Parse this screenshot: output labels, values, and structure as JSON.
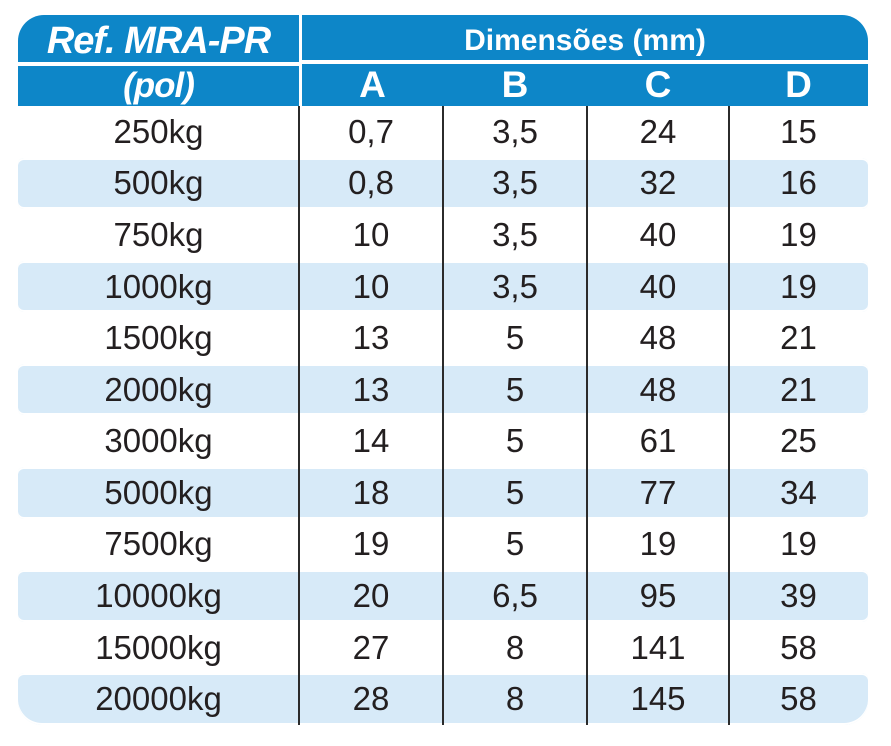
{
  "chart_data": {
    "type": "table",
    "title": "Dimensões (mm)",
    "ref_column_header": "Ref. MRA-PR",
    "ref_column_subheader": "(pol)",
    "columns": [
      "A",
      "B",
      "C",
      "D"
    ],
    "rows": [
      {
        "ref": "250kg",
        "a": "0,7",
        "b": "3,5",
        "c": "24",
        "d": "15"
      },
      {
        "ref": "500kg",
        "a": "0,8",
        "b": "3,5",
        "c": "32",
        "d": "16"
      },
      {
        "ref": "750kg",
        "a": "10",
        "b": "3,5",
        "c": "40",
        "d": "19"
      },
      {
        "ref": "1000kg",
        "a": "10",
        "b": "3,5",
        "c": "40",
        "d": "19"
      },
      {
        "ref": "1500kg",
        "a": "13",
        "b": "5",
        "c": "48",
        "d": "21"
      },
      {
        "ref": "2000kg",
        "a": "13",
        "b": "5",
        "c": "48",
        "d": "21"
      },
      {
        "ref": "3000kg",
        "a": "14",
        "b": "5",
        "c": "61",
        "d": "25"
      },
      {
        "ref": "5000kg",
        "a": "18",
        "b": "5",
        "c": "77",
        "d": "34"
      },
      {
        "ref": "7500kg",
        "a": "19",
        "b": "5",
        "c": "19",
        "d": "19"
      },
      {
        "ref": "10000kg",
        "a": "20",
        "b": "6,5",
        "c": "95",
        "d": "39"
      },
      {
        "ref": "15000kg",
        "a": "27",
        "b": "8",
        "c": "141",
        "d": "58"
      },
      {
        "ref": "20000kg",
        "a": "28",
        "b": "8",
        "c": "145",
        "d": "58"
      }
    ],
    "layout": {
      "striped_rows": "even rows light blue",
      "grid": "vertical dividers only between value columns",
      "corners": "rounded header top and table bottom"
    }
  },
  "colors": {
    "header_blue": "#0d86c8",
    "stripe_blue": "#d7eaf8",
    "text_dark": "#231f20",
    "header_text": "#ffffff",
    "grid_line": "#2b2b2b",
    "background": "#ffffff"
  }
}
